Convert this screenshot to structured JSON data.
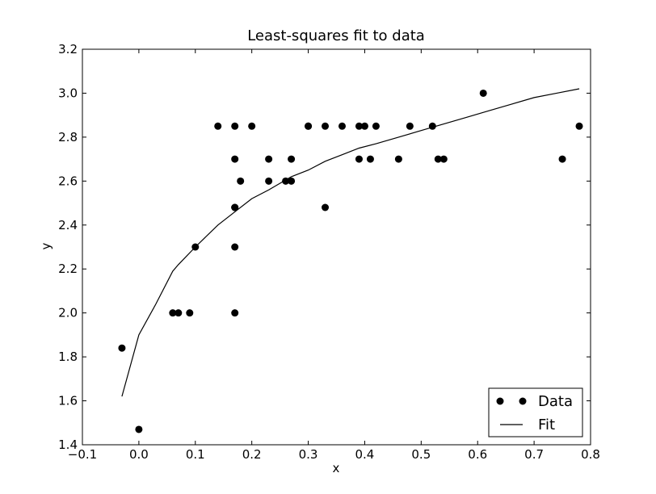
{
  "chart_data": {
    "type": "scatter",
    "title": "Least-squares fit to data",
    "xlabel": "x",
    "ylabel": "y",
    "xlim": [
      -0.1,
      0.8
    ],
    "ylim": [
      1.4,
      3.2
    ],
    "xticks": [
      -0.1,
      0.0,
      0.1,
      0.2,
      0.3,
      0.4,
      0.5,
      0.6,
      0.7,
      0.8
    ],
    "xtick_labels": [
      "−0.1",
      "0.0",
      "0.1",
      "0.2",
      "0.3",
      "0.4",
      "0.5",
      "0.6",
      "0.7",
      "0.8"
    ],
    "yticks": [
      1.4,
      1.6,
      1.8,
      2.0,
      2.2,
      2.4,
      2.6,
      2.8,
      3.0,
      3.2
    ],
    "ytick_labels": [
      "1.4",
      "1.6",
      "1.8",
      "2.0",
      "2.2",
      "2.4",
      "2.6",
      "2.8",
      "3.0",
      "3.2"
    ],
    "grid": false,
    "legend_position": "bottom-right",
    "series": [
      {
        "name": "Data",
        "kind": "points",
        "color": "#000000",
        "points": [
          [
            -0.03,
            1.84
          ],
          [
            0.0,
            1.47
          ],
          [
            0.06,
            2.0
          ],
          [
            0.07,
            2.0
          ],
          [
            0.09,
            2.0
          ],
          [
            0.1,
            2.3
          ],
          [
            0.14,
            2.85
          ],
          [
            0.17,
            2.85
          ],
          [
            0.17,
            2.7
          ],
          [
            0.17,
            2.48
          ],
          [
            0.17,
            2.48
          ],
          [
            0.17,
            2.3
          ],
          [
            0.17,
            2.0
          ],
          [
            0.18,
            2.6
          ],
          [
            0.2,
            2.85
          ],
          [
            0.23,
            2.7
          ],
          [
            0.23,
            2.6
          ],
          [
            0.26,
            2.6
          ],
          [
            0.27,
            2.7
          ],
          [
            0.27,
            2.6
          ],
          [
            0.3,
            2.85
          ],
          [
            0.3,
            2.85
          ],
          [
            0.33,
            2.85
          ],
          [
            0.33,
            2.48
          ],
          [
            0.36,
            2.85
          ],
          [
            0.39,
            2.85
          ],
          [
            0.39,
            2.7
          ],
          [
            0.4,
            2.85
          ],
          [
            0.41,
            2.7
          ],
          [
            0.42,
            2.85
          ],
          [
            0.46,
            2.7
          ],
          [
            0.48,
            2.85
          ],
          [
            0.52,
            2.85
          ],
          [
            0.53,
            2.7
          ],
          [
            0.54,
            2.7
          ],
          [
            0.61,
            3.0
          ],
          [
            0.75,
            2.7
          ],
          [
            0.78,
            2.85
          ]
        ]
      },
      {
        "name": "Fit",
        "kind": "line",
        "color": "#000000",
        "points": [
          [
            -0.03,
            1.62
          ],
          [
            0.0,
            1.9
          ],
          [
            0.03,
            2.04
          ],
          [
            0.06,
            2.19
          ],
          [
            0.07,
            2.22
          ],
          [
            0.1,
            2.3
          ],
          [
            0.14,
            2.4
          ],
          [
            0.17,
            2.46
          ],
          [
            0.2,
            2.52
          ],
          [
            0.23,
            2.56
          ],
          [
            0.27,
            2.62
          ],
          [
            0.3,
            2.65
          ],
          [
            0.33,
            2.69
          ],
          [
            0.36,
            2.72
          ],
          [
            0.39,
            2.75
          ],
          [
            0.42,
            2.77
          ],
          [
            0.46,
            2.8
          ],
          [
            0.5,
            2.83
          ],
          [
            0.54,
            2.86
          ],
          [
            0.58,
            2.89
          ],
          [
            0.62,
            2.92
          ],
          [
            0.66,
            2.95
          ],
          [
            0.7,
            2.98
          ],
          [
            0.74,
            3.0
          ],
          [
            0.78,
            3.02
          ]
        ]
      }
    ]
  }
}
